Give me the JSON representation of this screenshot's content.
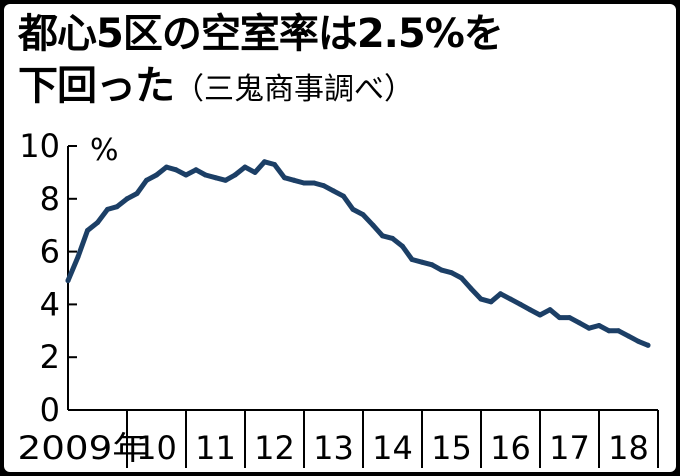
{
  "title_line1": "都心5区の空室率は2.5%を",
  "title_line2": "下回った",
  "source": "（三鬼商事調べ）",
  "colors": {
    "line": "#1c3f66",
    "axis": "#000000",
    "background": "#ffffff"
  },
  "chart_data": {
    "type": "line",
    "title": "都心5区の空室率は2.5%を下回った（三鬼商事調べ）",
    "unit": "%",
    "ylim": [
      0,
      10
    ],
    "yticks": [
      "10",
      "8",
      "6",
      "4",
      "2",
      "0"
    ],
    "xlim": [
      2009.0,
      2019.0
    ],
    "xtick_labels": [
      "2009年",
      "10",
      "11",
      "12",
      "13",
      "14",
      "15",
      "16",
      "17",
      "18"
    ],
    "grid": false,
    "series": [
      {
        "x": [
          2009.0,
          2009.17,
          2009.33,
          2009.5,
          2009.67,
          2009.83,
          2010.0,
          2010.17,
          2010.33,
          2010.5,
          2010.67,
          2010.83,
          2011.0,
          2011.17,
          2011.33,
          2011.5,
          2011.67,
          2011.83,
          2012.0,
          2012.17,
          2012.33,
          2012.5,
          2012.67,
          2012.83,
          2013.0,
          2013.17,
          2013.33,
          2013.5,
          2013.67,
          2013.83,
          2014.0,
          2014.17,
          2014.33,
          2014.5,
          2014.67,
          2014.83,
          2015.0,
          2015.17,
          2015.33,
          2015.5,
          2015.67,
          2015.83,
          2016.0,
          2016.17,
          2016.33,
          2016.5,
          2016.67,
          2016.83,
          2017.0,
          2017.17,
          2017.33,
          2017.5,
          2017.67,
          2017.83,
          2018.0,
          2018.17,
          2018.33,
          2018.5,
          2018.67,
          2018.83
        ],
        "y": [
          4.9,
          5.8,
          6.8,
          7.1,
          7.6,
          7.7,
          8.0,
          8.2,
          8.7,
          8.9,
          9.2,
          9.1,
          8.9,
          9.1,
          8.9,
          8.8,
          8.7,
          8.9,
          9.2,
          9.0,
          9.4,
          9.3,
          8.8,
          8.7,
          8.6,
          8.6,
          8.5,
          8.3,
          8.1,
          7.6,
          7.4,
          7.0,
          6.6,
          6.5,
          6.2,
          5.7,
          5.6,
          5.5,
          5.3,
          5.2,
          5.0,
          4.6,
          4.2,
          4.1,
          4.4,
          4.2,
          4.0,
          3.8,
          3.6,
          3.8,
          3.5,
          3.5,
          3.3,
          3.1,
          3.2,
          3.0,
          3.0,
          2.8,
          2.6,
          2.45
        ]
      }
    ]
  }
}
